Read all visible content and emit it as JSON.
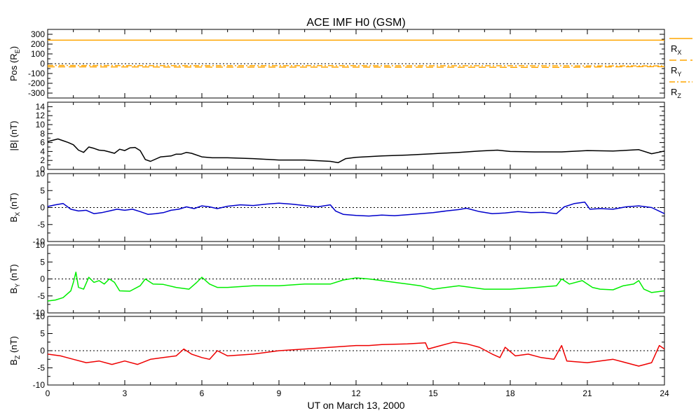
{
  "chart_data": {
    "type": "line",
    "title": "ACE IMF H0 (GSM)",
    "xlabel": "UT on March 13, 2000",
    "xlim": [
      0,
      24
    ],
    "xticks": [
      0,
      3,
      6,
      9,
      12,
      15,
      18,
      21,
      24
    ],
    "grid": false,
    "panels": [
      {
        "id": "pos",
        "ylabel": "Pos (RE)",
        "ylim": [
          -350,
          350
        ],
        "yticks": [
          -300,
          -200,
          -100,
          0,
          100,
          200,
          300
        ],
        "zero_line": true,
        "series": [
          {
            "name": "RX",
            "color": "#ffa500",
            "dash": "solid",
            "x": [
              0,
              24
            ],
            "y": [
              240,
              240
            ]
          },
          {
            "name": "RY",
            "color": "#ffa500",
            "dash": "long",
            "x": [
              0,
              3,
              6,
              9,
              12,
              15,
              18,
              20,
              21,
              22,
              23,
              24
            ],
            "y": [
              -32,
              -33,
              -34,
              -35,
              -35,
              -36,
              -37,
              -38,
              -35,
              -32,
              -30,
              -30
            ]
          },
          {
            "name": "RZ",
            "color": "#ffa500",
            "dash": "dashdot",
            "x": [
              0,
              3,
              6,
              9,
              12,
              15,
              18,
              21,
              24
            ],
            "y": [
              -18,
              -19,
              -20,
              -20,
              -20,
              -21,
              -21,
              -22,
              -22
            ]
          }
        ]
      },
      {
        "id": "bmag",
        "ylabel": "|B| (nT)",
        "ylim": [
          0,
          15
        ],
        "yticks": [
          0,
          2,
          4,
          6,
          8,
          10,
          12,
          14
        ],
        "zero_line": false,
        "series": [
          {
            "name": "|B|",
            "color": "#000000",
            "dash": "solid",
            "x": [
              0,
              0.2,
              0.4,
              0.6,
              0.8,
              1.0,
              1.2,
              1.4,
              1.6,
              1.8,
              2.0,
              2.2,
              2.4,
              2.6,
              2.8,
              3.0,
              3.2,
              3.4,
              3.6,
              3.8,
              4.0,
              4.4,
              4.8,
              5.0,
              5.2,
              5.4,
              5.6,
              6.0,
              6.4,
              7.0,
              8.0,
              9.0,
              10.0,
              11.0,
              11.3,
              11.6,
              12.0,
              13.0,
              14.0,
              15.0,
              16.0,
              16.8,
              17.5,
              18.0,
              19.0,
              20.0,
              21.0,
              22.0,
              23.0,
              23.5,
              24.0
            ],
            "y": [
              6.2,
              6.5,
              6.8,
              6.4,
              6.0,
              5.5,
              4.3,
              3.8,
              5.0,
              4.7,
              4.3,
              4.2,
              3.9,
              3.6,
              4.5,
              4.2,
              4.8,
              4.9,
              4.2,
              2.2,
              1.8,
              2.8,
              3.0,
              3.4,
              3.4,
              3.8,
              3.6,
              2.8,
              2.6,
              2.6,
              2.4,
              2.1,
              2.1,
              1.8,
              1.5,
              2.4,
              2.7,
              3.0,
              3.2,
              3.5,
              3.8,
              4.1,
              4.3,
              4.0,
              3.9,
              3.9,
              4.2,
              4.1,
              4.4,
              3.5,
              4.1
            ]
          }
        ]
      },
      {
        "id": "bx",
        "ylabel": "BX (nT)",
        "ylim": [
          -10,
          10
        ],
        "yticks": [
          -10,
          -5,
          0,
          5,
          10
        ],
        "zero_line": true,
        "series": [
          {
            "name": "BX",
            "color": "#0000cc",
            "dash": "solid",
            "x": [
              0,
              0.3,
              0.6,
              0.9,
              1.2,
              1.5,
              1.8,
              2.1,
              2.4,
              2.7,
              3.0,
              3.3,
              3.6,
              3.9,
              4.2,
              4.5,
              4.8,
              5.1,
              5.4,
              5.7,
              6.0,
              6.3,
              6.6,
              7.0,
              7.5,
              8.0,
              8.5,
              9.0,
              9.5,
              10.0,
              10.5,
              11.0,
              11.2,
              11.5,
              12.0,
              12.5,
              13.0,
              13.5,
              14.0,
              14.5,
              15.0,
              15.5,
              16.0,
              16.3,
              16.8,
              17.3,
              17.8,
              18.3,
              18.8,
              19.3,
              19.8,
              20.1,
              20.5,
              20.9,
              21.1,
              21.5,
              22.0,
              22.5,
              23.0,
              23.5,
              24.0
            ],
            "y": [
              0.3,
              0.8,
              1.2,
              -0.5,
              -1.0,
              -0.8,
              -1.8,
              -1.5,
              -1.0,
              -0.5,
              -0.8,
              -0.5,
              -1.2,
              -2.0,
              -1.8,
              -1.5,
              -0.8,
              -0.5,
              0.2,
              -0.3,
              0.5,
              0.2,
              -0.3,
              0.4,
              0.8,
              0.6,
              1.0,
              1.3,
              1.0,
              0.6,
              0.2,
              0.8,
              -1.0,
              -2.0,
              -2.3,
              -2.5,
              -2.2,
              -2.4,
              -2.1,
              -1.8,
              -1.5,
              -1.0,
              -0.6,
              -0.2,
              -1.2,
              -1.8,
              -1.6,
              -1.2,
              -1.5,
              -1.4,
              -1.8,
              0.2,
              1.2,
              1.6,
              -0.5,
              -0.3,
              -0.5,
              0.2,
              0.5,
              0.0,
              -1.8
            ]
          }
        ]
      },
      {
        "id": "by",
        "ylabel": "BY (nT)",
        "ylim": [
          -10,
          10
        ],
        "yticks": [
          -10,
          -5,
          0,
          5,
          10
        ],
        "zero_line": true,
        "series": [
          {
            "name": "BY",
            "color": "#00ee00",
            "dash": "solid",
            "x": [
              0,
              0.3,
              0.6,
              0.9,
              1.0,
              1.1,
              1.2,
              1.4,
              1.6,
              1.8,
              2.0,
              2.2,
              2.4,
              2.6,
              2.8,
              3.2,
              3.6,
              3.8,
              4.1,
              4.5,
              5.0,
              5.5,
              5.8,
              6.0,
              6.3,
              6.6,
              7.0,
              8.0,
              9.0,
              10.0,
              11.0,
              11.5,
              12.0,
              12.5,
              13.0,
              13.5,
              14.0,
              14.5,
              15.0,
              15.5,
              16.0,
              17.0,
              18.0,
              19.0,
              19.8,
              20.0,
              20.3,
              20.8,
              21.2,
              21.5,
              22.0,
              22.4,
              22.8,
              23.0,
              23.2,
              23.5,
              24.0
            ],
            "y": [
              -6.5,
              -6.2,
              -5.5,
              -3.5,
              -1.0,
              2.0,
              -2.5,
              -3.0,
              0.5,
              -1.0,
              -0.5,
              -1.5,
              0.0,
              -1.0,
              -3.5,
              -3.6,
              -2.0,
              0.0,
              -1.5,
              -1.6,
              -2.5,
              -3.0,
              -1.0,
              0.5,
              -1.5,
              -2.5,
              -2.5,
              -2.0,
              -2.0,
              -1.5,
              -1.5,
              -0.3,
              0.3,
              0.0,
              -0.5,
              -1.0,
              -1.5,
              -2.0,
              -3.0,
              -2.5,
              -2.0,
              -3.0,
              -3.0,
              -2.5,
              -2.0,
              0.0,
              -1.5,
              -0.5,
              -2.5,
              -3.0,
              -3.2,
              -2.0,
              -1.5,
              -0.5,
              -3.0,
              -4.0,
              -3.5
            ]
          }
        ]
      },
      {
        "id": "bz",
        "ylabel": "BZ (nT)",
        "ylim": [
          -10,
          10
        ],
        "yticks": [
          -10,
          -5,
          0,
          5,
          10
        ],
        "zero_line": true,
        "series": [
          {
            "name": "BZ",
            "color": "#ee0000",
            "dash": "solid",
            "x": [
              0,
              0.5,
              1.0,
              1.5,
              2.0,
              2.5,
              3.0,
              3.5,
              4.0,
              4.5,
              5.0,
              5.3,
              5.6,
              6.0,
              6.3,
              6.6,
              7.0,
              8.0,
              9.0,
              10.0,
              11.0,
              12.0,
              12.5,
              13.0,
              14.0,
              14.7,
              14.8,
              15.3,
              15.8,
              16.3,
              16.8,
              17.3,
              17.6,
              17.8,
              18.2,
              18.7,
              19.2,
              19.7,
              20.0,
              20.2,
              21.0,
              22.0,
              22.5,
              23.0,
              23.5,
              23.8,
              24.0
            ],
            "y": [
              -1.0,
              -1.5,
              -2.5,
              -3.5,
              -3.0,
              -4.0,
              -3.0,
              -4.0,
              -2.5,
              -2.0,
              -1.5,
              0.5,
              -1.0,
              -2.0,
              -2.5,
              0.0,
              -1.5,
              -1.0,
              0.0,
              0.5,
              1.0,
              1.5,
              1.5,
              1.8,
              2.0,
              2.3,
              0.5,
              1.5,
              2.5,
              2.0,
              1.0,
              -1.0,
              -2.0,
              1.0,
              -1.5,
              -1.0,
              -2.0,
              -2.5,
              1.5,
              -3.0,
              -3.5,
              -2.5,
              -3.5,
              -4.5,
              -3.5,
              1.5,
              0.5
            ]
          }
        ]
      }
    ],
    "legend": {
      "placement": "right of top panel",
      "entries": [
        {
          "name": "RX",
          "base": "R",
          "sub": "X",
          "color": "#ffa500",
          "dash": "solid"
        },
        {
          "name": "RY",
          "base": "R",
          "sub": "Y",
          "color": "#ffa500",
          "dash": "long"
        },
        {
          "name": "RZ",
          "base": "R",
          "sub": "Z",
          "color": "#ffa500",
          "dash": "dashdot"
        }
      ]
    }
  }
}
